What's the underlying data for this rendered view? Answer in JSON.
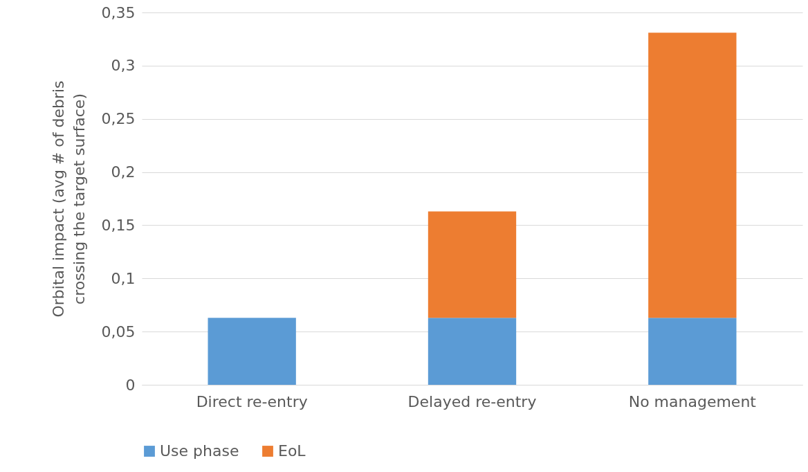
{
  "chart_data": {
    "type": "bar",
    "ylabel": "Orbital impact (avg # of debris crossing the target surface)",
    "categories": [
      "Direct re-entry",
      "Delayed re-entry",
      "No management"
    ],
    "series": [
      {
        "name": "Use phase",
        "color": "#5b9bd5",
        "values": [
          0.063,
          0.063,
          0.063
        ]
      },
      {
        "name": "EoL",
        "color": "#ed7d31",
        "values": [
          null,
          0.1,
          0.268
        ]
      }
    ],
    "stacked": true,
    "ylim": [
      0,
      0.35
    ],
    "yticks": [
      {
        "value": 0,
        "label": "0"
      },
      {
        "value": 0.05,
        "label": "0,05"
      },
      {
        "value": 0.1,
        "label": "0,1"
      },
      {
        "value": 0.15,
        "label": "0,15"
      },
      {
        "value": 0.2,
        "label": "0,2"
      },
      {
        "value": 0.25,
        "label": "0,25"
      },
      {
        "value": 0.3,
        "label": "0,3"
      },
      {
        "value": 0.35,
        "label": "0,35"
      }
    ],
    "grid": "y",
    "legend": "bottom"
  }
}
